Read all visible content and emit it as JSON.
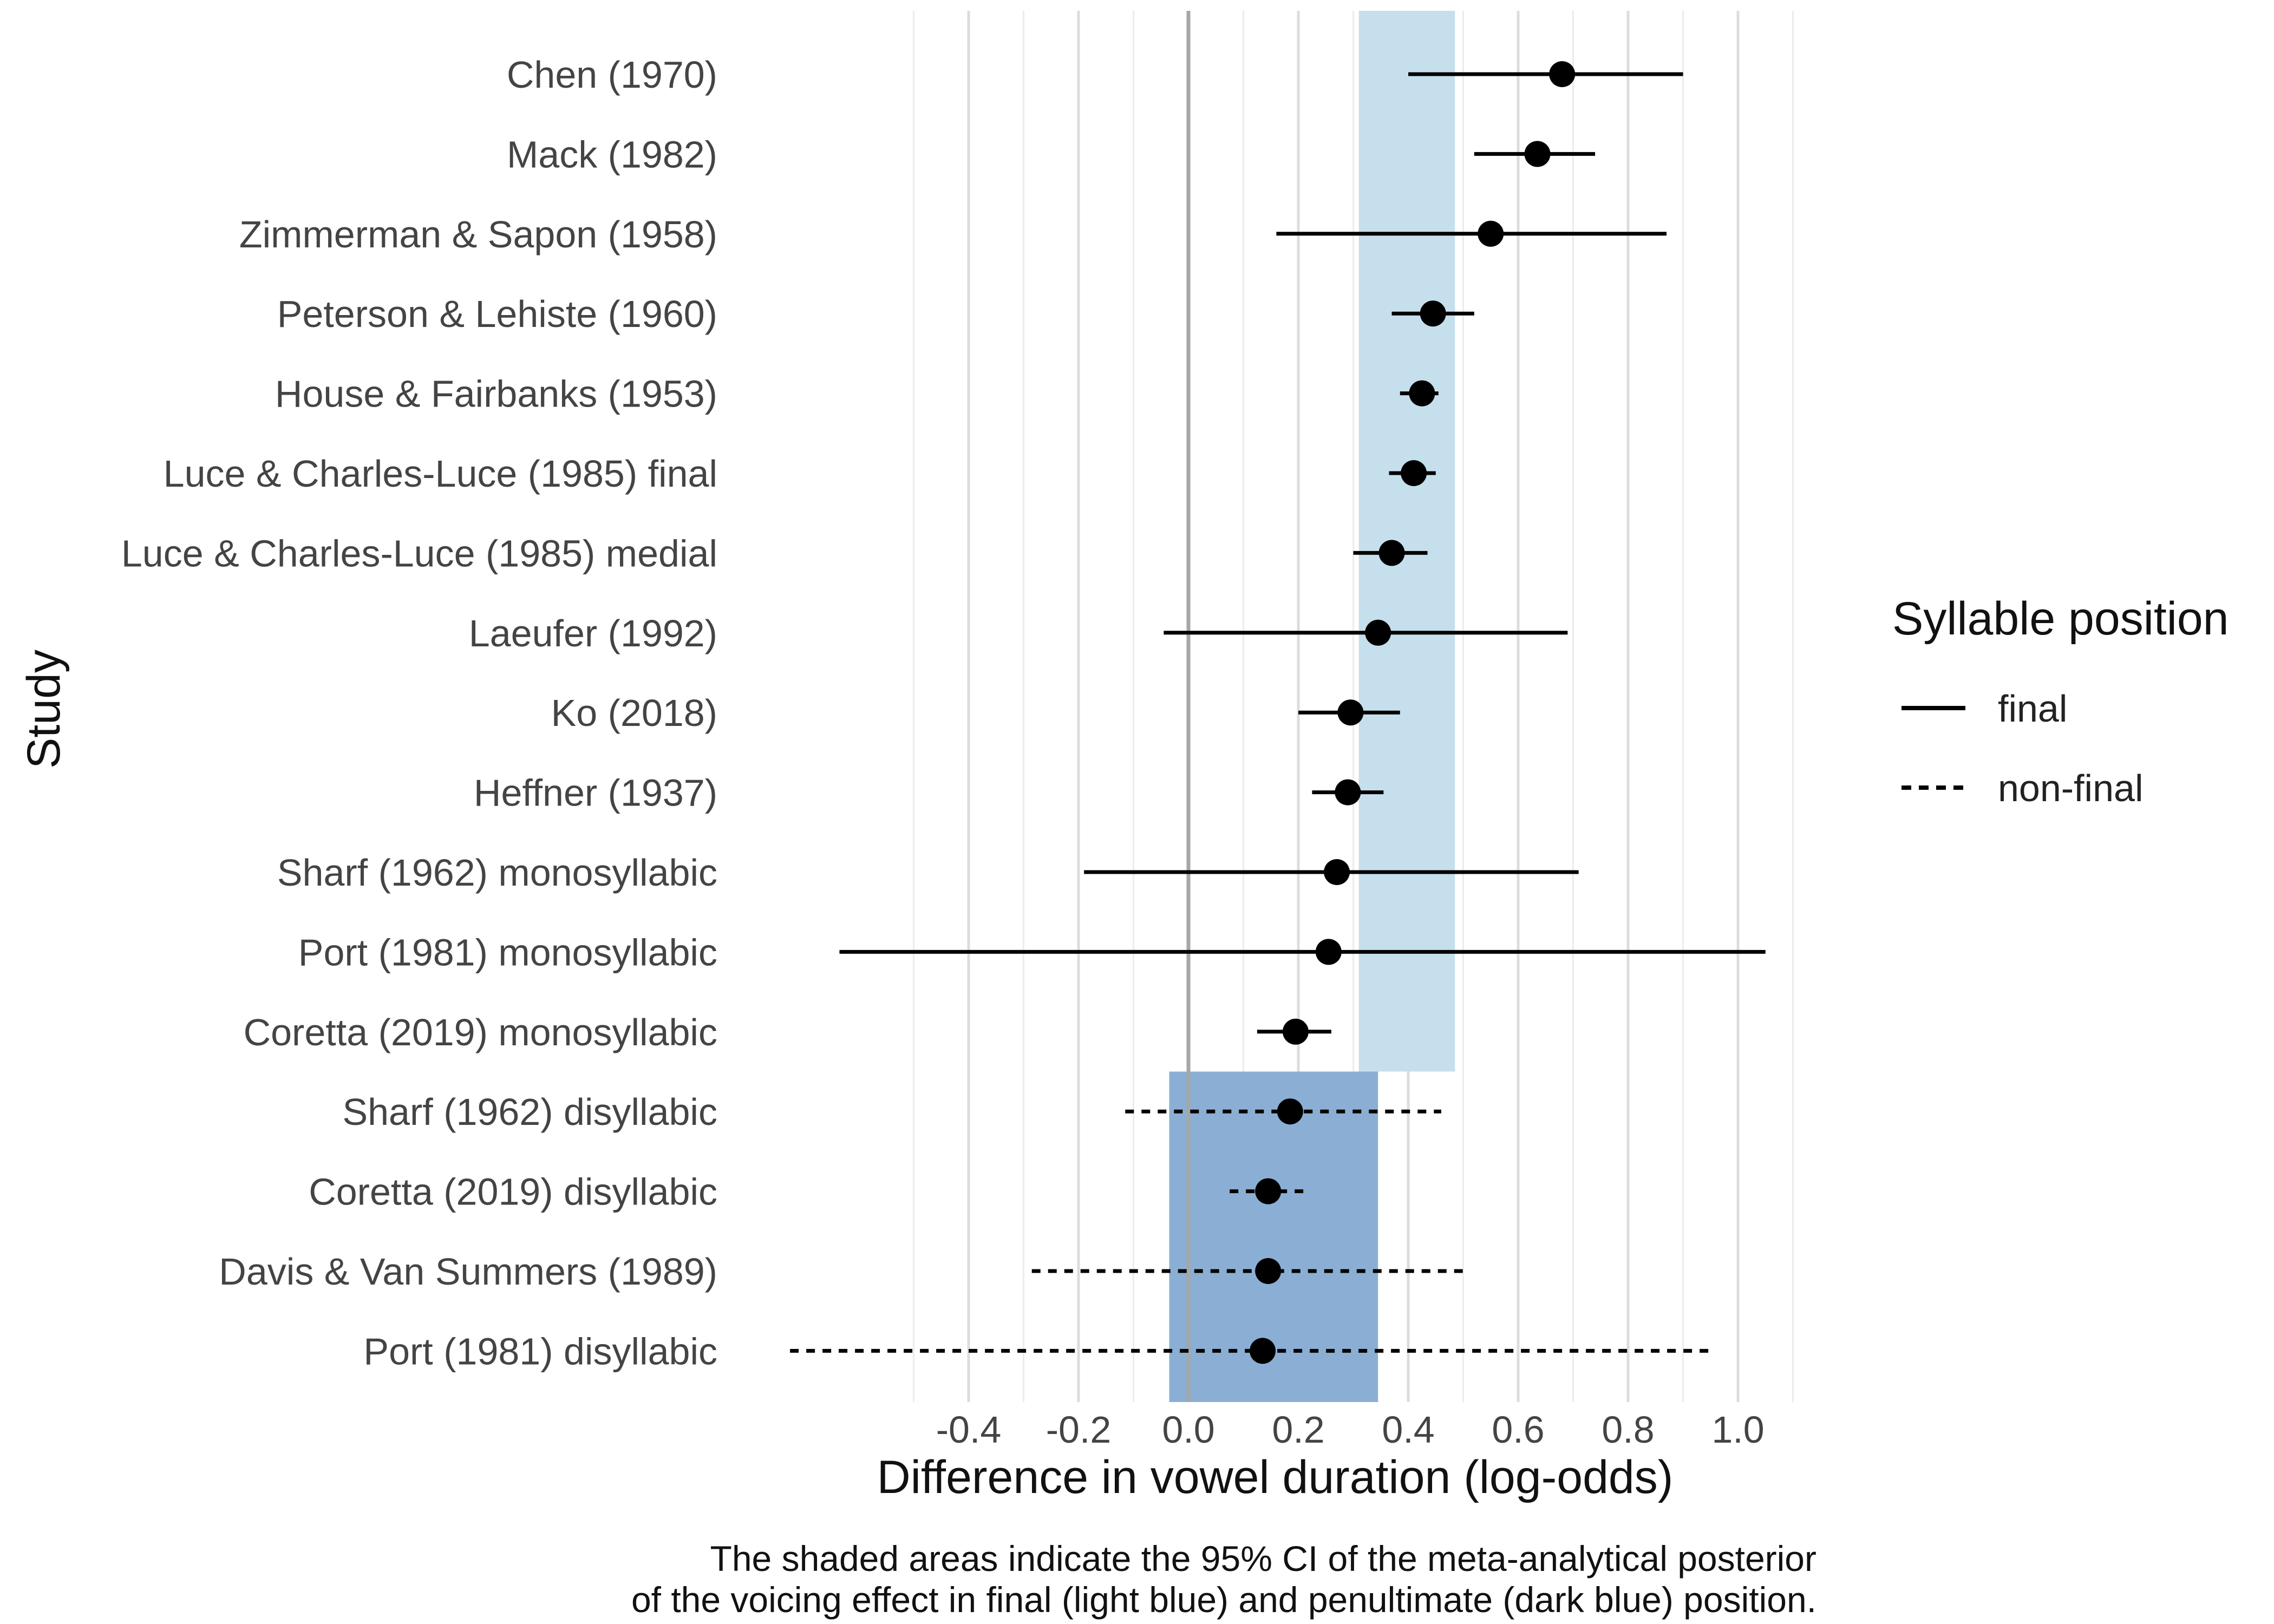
{
  "chart_data": {
    "type": "forest",
    "xlabel": "Difference in vowel duration (log-odds)",
    "ylabel": "Study",
    "xlim": [
      -0.8,
      1.1
    ],
    "xticks": [
      -0.4,
      -0.2,
      0.0,
      0.2,
      0.4,
      0.6,
      0.8,
      1.0
    ],
    "xtick_labels": [
      "-0.4",
      "-0.2",
      "0.0",
      "0.2",
      "0.4",
      "0.6",
      "0.8",
      "1.0"
    ],
    "grid": "vertical",
    "legend": {
      "title": "Syllable position",
      "position": "right",
      "entries": [
        {
          "label": "final",
          "linetype": "solid"
        },
        {
          "label": "non-final",
          "linetype": "dashed"
        }
      ]
    },
    "shaded_intervals": [
      {
        "position": "final",
        "lower": 0.31,
        "upper": 0.485,
        "color": "#c6dfed"
      },
      {
        "position": "penultimate",
        "lower": -0.035,
        "upper": 0.345,
        "color": "#8bafd4"
      }
    ],
    "studies": [
      {
        "study": "Chen (1970)",
        "estimate": 0.68,
        "lower": 0.4,
        "upper": 0.9,
        "position": "final"
      },
      {
        "study": "Mack (1982)",
        "estimate": 0.635,
        "lower": 0.52,
        "upper": 0.74,
        "position": "final"
      },
      {
        "study": "Zimmerman & Sapon (1958)",
        "estimate": 0.55,
        "lower": 0.16,
        "upper": 0.87,
        "position": "final"
      },
      {
        "study": "Peterson & Lehiste (1960)",
        "estimate": 0.445,
        "lower": 0.37,
        "upper": 0.52,
        "position": "final"
      },
      {
        "study": "House & Fairbanks (1953)",
        "estimate": 0.425,
        "lower": 0.385,
        "upper": 0.455,
        "position": "final"
      },
      {
        "study": "Luce & Charles-Luce (1985) final",
        "estimate": 0.41,
        "lower": 0.365,
        "upper": 0.45,
        "position": "final"
      },
      {
        "study": "Luce & Charles-Luce (1985) medial",
        "estimate": 0.37,
        "lower": 0.3,
        "upper": 0.435,
        "position": "final"
      },
      {
        "study": "Laeufer (1992)",
        "estimate": 0.345,
        "lower": -0.045,
        "upper": 0.69,
        "position": "final"
      },
      {
        "study": "Ko (2018)",
        "estimate": 0.295,
        "lower": 0.2,
        "upper": 0.385,
        "position": "final"
      },
      {
        "study": "Heffner (1937)",
        "estimate": 0.29,
        "lower": 0.225,
        "upper": 0.355,
        "position": "final"
      },
      {
        "study": "Sharf (1962) monosyllabic",
        "estimate": 0.27,
        "lower": -0.19,
        "upper": 0.71,
        "position": "final"
      },
      {
        "study": "Port (1981) monosyllabic",
        "estimate": 0.255,
        "lower": -0.635,
        "upper": 1.05,
        "position": "final"
      },
      {
        "study": "Coretta (2019) monosyllabic",
        "estimate": 0.195,
        "lower": 0.125,
        "upper": 0.26,
        "position": "final"
      },
      {
        "study": "Sharf (1962) disyllabic",
        "estimate": 0.185,
        "lower": -0.115,
        "upper": 0.46,
        "position": "non-final"
      },
      {
        "study": "Coretta (2019) disyllabic",
        "estimate": 0.145,
        "lower": 0.075,
        "upper": 0.215,
        "position": "non-final"
      },
      {
        "study": "Davis & Van Summers (1989)",
        "estimate": 0.145,
        "lower": -0.285,
        "upper": 0.5,
        "position": "non-final"
      },
      {
        "study": "Port (1981) disyllabic",
        "estimate": 0.135,
        "lower": -0.725,
        "upper": 0.95,
        "position": "non-final"
      }
    ],
    "caption": [
      "The shaded areas indicate the 95% CI of the meta-analytical posterior",
      "of the voicing effect in final (light blue) and penultimate (dark blue) position."
    ]
  }
}
